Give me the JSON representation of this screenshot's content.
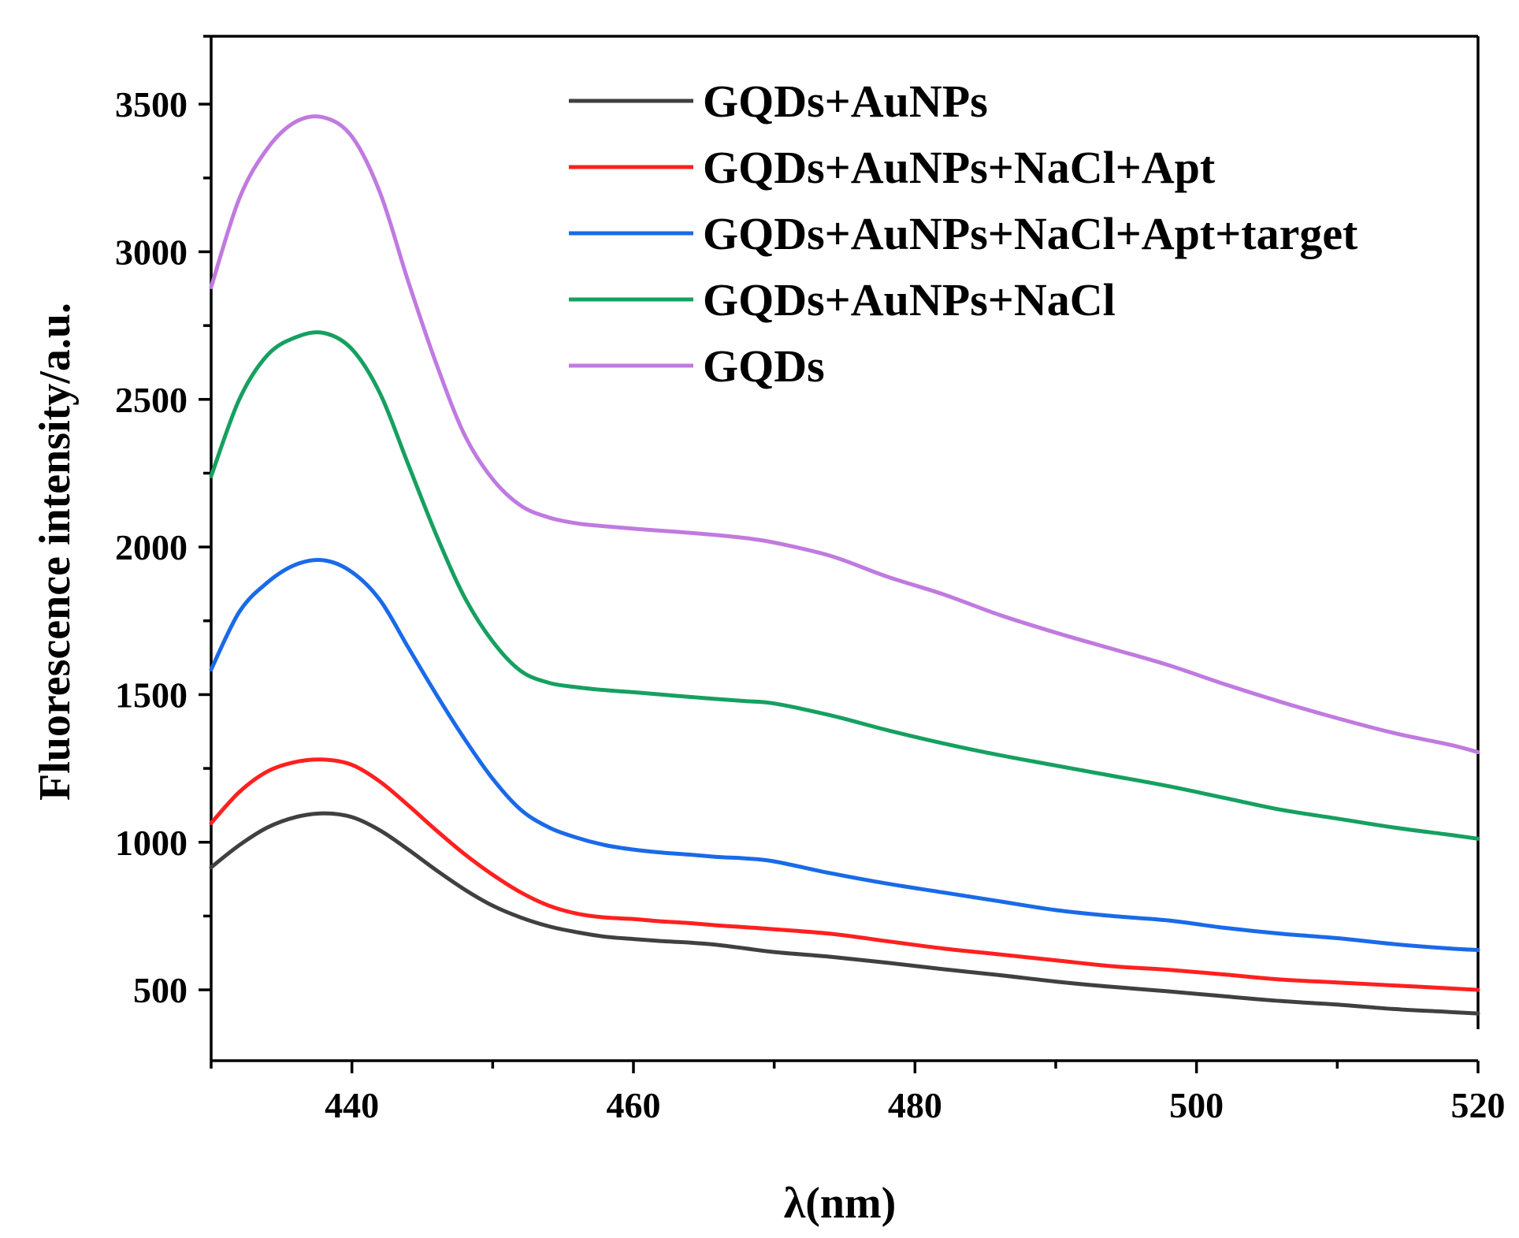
{
  "chart_data": {
    "type": "line",
    "title": "",
    "xlabel": "λ(nm)",
    "ylabel": "Fluorescence intensity/a.u.",
    "xlim": [
      430,
      520
    ],
    "ylim": [
      260,
      3730
    ],
    "x_ticks": [
      440,
      460,
      480,
      500,
      520
    ],
    "x_ticks_minor": [
      430,
      450,
      470,
      490,
      510
    ],
    "y_ticks": [
      500,
      1000,
      1500,
      2000,
      2500,
      3000,
      3500
    ],
    "y_ticks_minor": [
      250,
      750,
      1250,
      1750,
      2250,
      2750,
      3250,
      3750
    ],
    "grid": false,
    "legend_position": "top-right",
    "series": [
      {
        "name": "GQDs+AuNPs",
        "color": "#404040",
        "x": [
          430,
          432,
          434,
          436,
          438,
          440,
          442,
          444,
          446,
          448,
          450,
          452,
          454,
          456,
          458,
          460,
          462,
          464,
          466,
          468,
          470,
          474,
          478,
          482,
          486,
          490,
          494,
          498,
          502,
          506,
          510,
          514,
          518,
          520
        ],
        "y": [
          915,
          990,
          1050,
          1085,
          1098,
          1085,
          1040,
          975,
          905,
          840,
          785,
          745,
          715,
          695,
          680,
          672,
          665,
          660,
          652,
          640,
          628,
          612,
          592,
          570,
          550,
          528,
          510,
          495,
          478,
          462,
          450,
          435,
          425,
          420
        ]
      },
      {
        "name": "GQDs+AuNPs+NaCl+Apt",
        "color": "#ff2020",
        "x": [
          430,
          432,
          434,
          436,
          438,
          440,
          442,
          444,
          446,
          448,
          450,
          452,
          454,
          456,
          458,
          460,
          462,
          464,
          466,
          468,
          470,
          474,
          478,
          482,
          486,
          490,
          494,
          498,
          502,
          506,
          510,
          514,
          518,
          520
        ],
        "y": [
          1065,
          1170,
          1240,
          1272,
          1280,
          1262,
          1205,
          1125,
          1040,
          960,
          890,
          830,
          785,
          758,
          745,
          740,
          732,
          726,
          718,
          712,
          705,
          690,
          665,
          640,
          620,
          600,
          580,
          568,
          552,
          535,
          525,
          515,
          505,
          500
        ]
      },
      {
        "name": "GQDs+AuNPs+NaCl+Apt+target",
        "color": "#1a6ae8",
        "x": [
          430,
          432,
          434,
          436,
          438,
          440,
          442,
          444,
          446,
          448,
          450,
          452,
          454,
          456,
          458,
          460,
          462,
          464,
          466,
          468,
          470,
          474,
          478,
          482,
          486,
          490,
          494,
          498,
          502,
          506,
          510,
          514,
          518,
          520
        ],
        "y": [
          1585,
          1780,
          1880,
          1940,
          1955,
          1915,
          1820,
          1660,
          1500,
          1350,
          1215,
          1110,
          1050,
          1015,
          990,
          975,
          965,
          958,
          950,
          945,
          935,
          895,
          860,
          830,
          800,
          770,
          750,
          735,
          710,
          690,
          675,
          655,
          640,
          635
        ]
      },
      {
        "name": "GQDs+AuNPs+NaCl",
        "color": "#16a060",
        "x": [
          430,
          432,
          434,
          436,
          438,
          440,
          442,
          444,
          446,
          448,
          450,
          452,
          454,
          456,
          458,
          460,
          462,
          464,
          466,
          468,
          470,
          474,
          478,
          482,
          486,
          490,
          494,
          498,
          502,
          506,
          510,
          514,
          518,
          520
        ],
        "y": [
          2240,
          2500,
          2650,
          2710,
          2725,
          2670,
          2520,
          2280,
          2040,
          1830,
          1680,
          1580,
          1540,
          1525,
          1515,
          1508,
          1500,
          1492,
          1485,
          1478,
          1470,
          1430,
          1380,
          1335,
          1295,
          1260,
          1225,
          1190,
          1150,
          1110,
          1080,
          1050,
          1025,
          1012
        ]
      },
      {
        "name": "GQDs",
        "color": "#c07ae0",
        "x": [
          430,
          432,
          434,
          436,
          438,
          440,
          442,
          444,
          446,
          448,
          450,
          452,
          454,
          456,
          458,
          460,
          462,
          464,
          466,
          468,
          470,
          474,
          478,
          482,
          486,
          490,
          494,
          498,
          502,
          506,
          510,
          514,
          518,
          520
        ],
        "y": [
          2880,
          3180,
          3350,
          3440,
          3455,
          3390,
          3200,
          2900,
          2620,
          2380,
          2230,
          2140,
          2100,
          2080,
          2070,
          2062,
          2055,
          2048,
          2040,
          2030,
          2015,
          1970,
          1900,
          1840,
          1770,
          1710,
          1655,
          1600,
          1535,
          1475,
          1420,
          1370,
          1330,
          1305
        ]
      }
    ]
  }
}
